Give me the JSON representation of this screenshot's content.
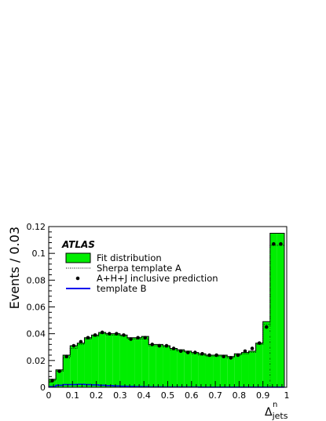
{
  "chart_data": {
    "type": "bar",
    "experiment_label": "ATLAS",
    "xlabel": {
      "main": "Δ",
      "sup": "n",
      "sub": "jets"
    },
    "ylabel": "Events / 0.03",
    "xlim": [
      0,
      1
    ],
    "ylim": [
      0,
      0.12
    ],
    "x_ticks": [
      "0",
      "0.1",
      "0.2",
      "0.3",
      "0.4",
      "0.5",
      "0.6",
      "0.7",
      "0.8",
      "0.9",
      "1"
    ],
    "y_ticks": [
      "0",
      "0.02",
      "0.04",
      "0.06",
      "0.08",
      "0.1",
      "0.12"
    ],
    "bin_edges": [
      0,
      0.03,
      0.06,
      0.09,
      0.12,
      0.15,
      0.18,
      0.21,
      0.24,
      0.27,
      0.3,
      0.33,
      0.36,
      0.39,
      0.42,
      0.45,
      0.48,
      0.51,
      0.54,
      0.57,
      0.6,
      0.63,
      0.66,
      0.69,
      0.72,
      0.75,
      0.78,
      0.81,
      0.84,
      0.87,
      0.9,
      0.93,
      0.96,
      0.99
    ],
    "series": [
      {
        "name": "Fit distribution",
        "style": "filled-histogram",
        "color": "#00ee00",
        "values": [
          0.006,
          0.013,
          0.024,
          0.031,
          0.033,
          0.037,
          0.039,
          0.041,
          0.04,
          0.04,
          0.039,
          0.037,
          0.037,
          0.038,
          0.032,
          0.032,
          0.031,
          0.029,
          0.028,
          0.027,
          0.026,
          0.025,
          0.024,
          0.024,
          0.024,
          0.023,
          0.025,
          0.026,
          0.027,
          0.033,
          0.049,
          0.115,
          0.115
        ]
      },
      {
        "name": "Sherpa template A",
        "style": "dotted-line",
        "color": "#000000",
        "values": [
          0.005,
          0.012,
          0.022,
          0.029,
          0.032,
          0.036,
          0.038,
          0.04,
          0.039,
          0.039,
          0.038,
          0.036,
          0.036,
          0.036,
          0.031,
          0.031,
          0.03,
          0.028,
          0.027,
          0.026,
          0.025,
          0.024,
          0.023,
          0.023,
          0.023,
          0.022,
          0.024,
          0.025,
          0.026,
          0.032,
          0.047,
          0.106,
          0.106
        ]
      },
      {
        "name": "A+H+J inclusive prediction",
        "style": "markers",
        "color": "#000000",
        "values": [
          0.005,
          0.012,
          0.023,
          0.031,
          0.034,
          0.037,
          0.039,
          0.041,
          0.04,
          0.04,
          0.039,
          0.036,
          0.037,
          0.037,
          0.032,
          0.031,
          0.031,
          0.029,
          0.027,
          0.026,
          0.026,
          0.025,
          0.024,
          0.024,
          0.023,
          0.022,
          0.024,
          0.027,
          0.029,
          0.033,
          0.045,
          0.107,
          0.107
        ]
      },
      {
        "name": "template B",
        "style": "solid-line",
        "color": "#0000ee",
        "values": [
          0.0005,
          0.0015,
          0.002,
          0.002,
          0.0022,
          0.002,
          0.0018,
          0.0015,
          0.0012,
          0.001,
          0.0008,
          0.0006,
          0.0005,
          0.0004,
          0.0003,
          0.0003,
          0.0002,
          0.0002,
          0.0002,
          0.0002,
          0.0002,
          0.0001,
          0.0001,
          0.0001,
          0.0001,
          0.0001,
          0.0001,
          0.0001,
          0.0001,
          0.0001,
          0.0001,
          0.0001,
          0.0001
        ]
      }
    ],
    "vertical_marker": {
      "x": 0.93,
      "y_top": 0.104,
      "color": "#008800"
    },
    "legend_position": "top-left",
    "grid": false
  }
}
